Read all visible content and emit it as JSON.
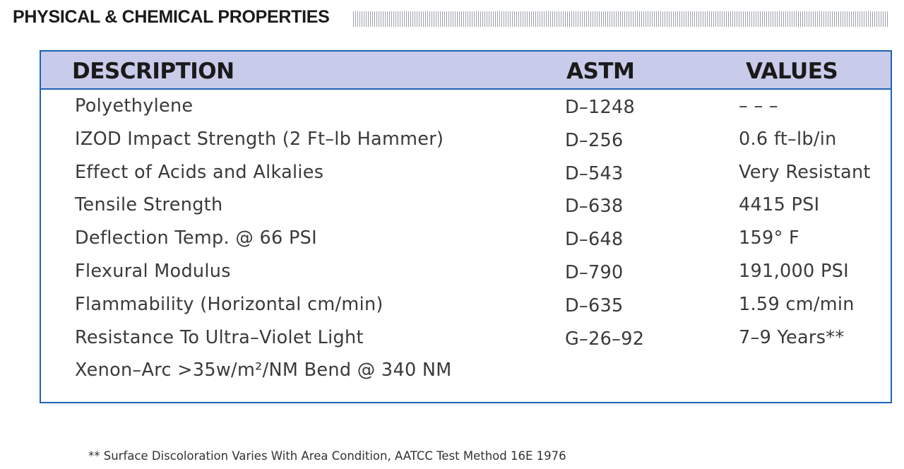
{
  "header": {
    "title": "PHYSICAL & CHEMICAL PROPERTIES"
  },
  "table": {
    "columns": [
      "DESCRIPTION",
      "ASTM",
      "VALUES"
    ],
    "rows": [
      [
        "Polyethylene",
        "D–1248",
        "– – –"
      ],
      [
        "IZOD Impact Strength (2 Ft–lb Hammer)",
        "D–256",
        "0.6 ft–lb/in"
      ],
      [
        "Effect of Acids and Alkalies",
        "D–543",
        "Very Resistant"
      ],
      [
        "Tensile Strength",
        "D–638",
        "4415 PSI"
      ],
      [
        "Deflection Temp. @ 66 PSI",
        "D–648",
        "159° F"
      ],
      [
        "Flexural Modulus",
        "D–790",
        "191,000 PSI"
      ],
      [
        "Flammability (Horizontal cm/min)",
        "D–635",
        "1.59 cm/min"
      ],
      [
        "Resistance To Ultra–Violet Light",
        "G–26–92",
        "7–9 Years**"
      ],
      [
        "Xenon–Arc >35w/m²/NM Bend @ 340 NM"
      ]
    ]
  },
  "footnote": "** Surface Discoloration Varies With Area Condition, AATCC Test Method 16E 1976"
}
